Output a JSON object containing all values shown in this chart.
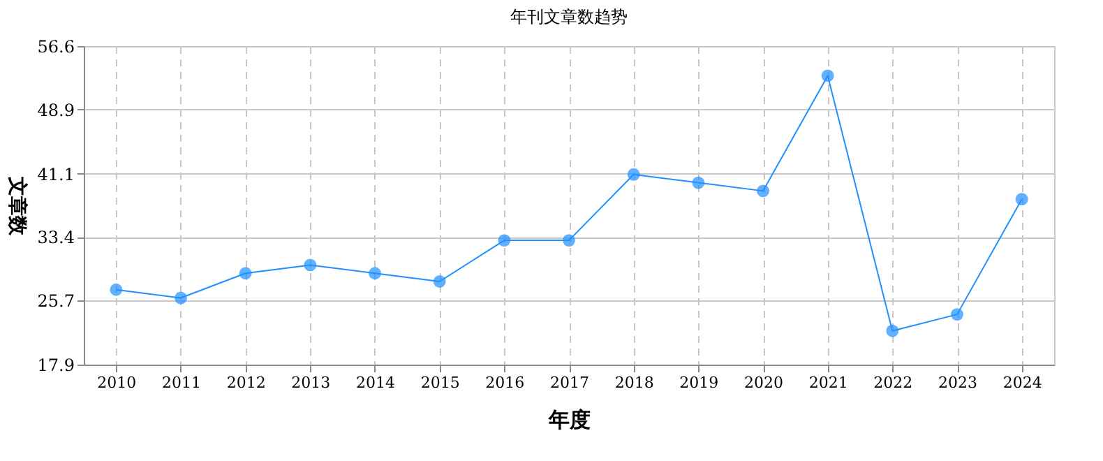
{
  "chart_data": {
    "type": "line",
    "title": "年刊文章数趋势",
    "xlabel": "年度",
    "ylabel": "文章数",
    "categories": [
      "2010",
      "2011",
      "2012",
      "2013",
      "2014",
      "2015",
      "2016",
      "2017",
      "2018",
      "2019",
      "2020",
      "2021",
      "2022",
      "2023",
      "2024"
    ],
    "series": [
      {
        "color": "#1e90ff",
        "values": [
          27,
          26,
          29,
          30,
          29,
          28,
          33,
          33,
          41,
          40,
          39,
          53,
          22,
          24,
          38
        ]
      }
    ],
    "ylim": [
      17.9,
      56.6
    ],
    "yticks": [
      17.9,
      25.7,
      33.4,
      41.1,
      48.9,
      56.6
    ],
    "grid": true,
    "marker": "circle",
    "line_style": "solid"
  }
}
